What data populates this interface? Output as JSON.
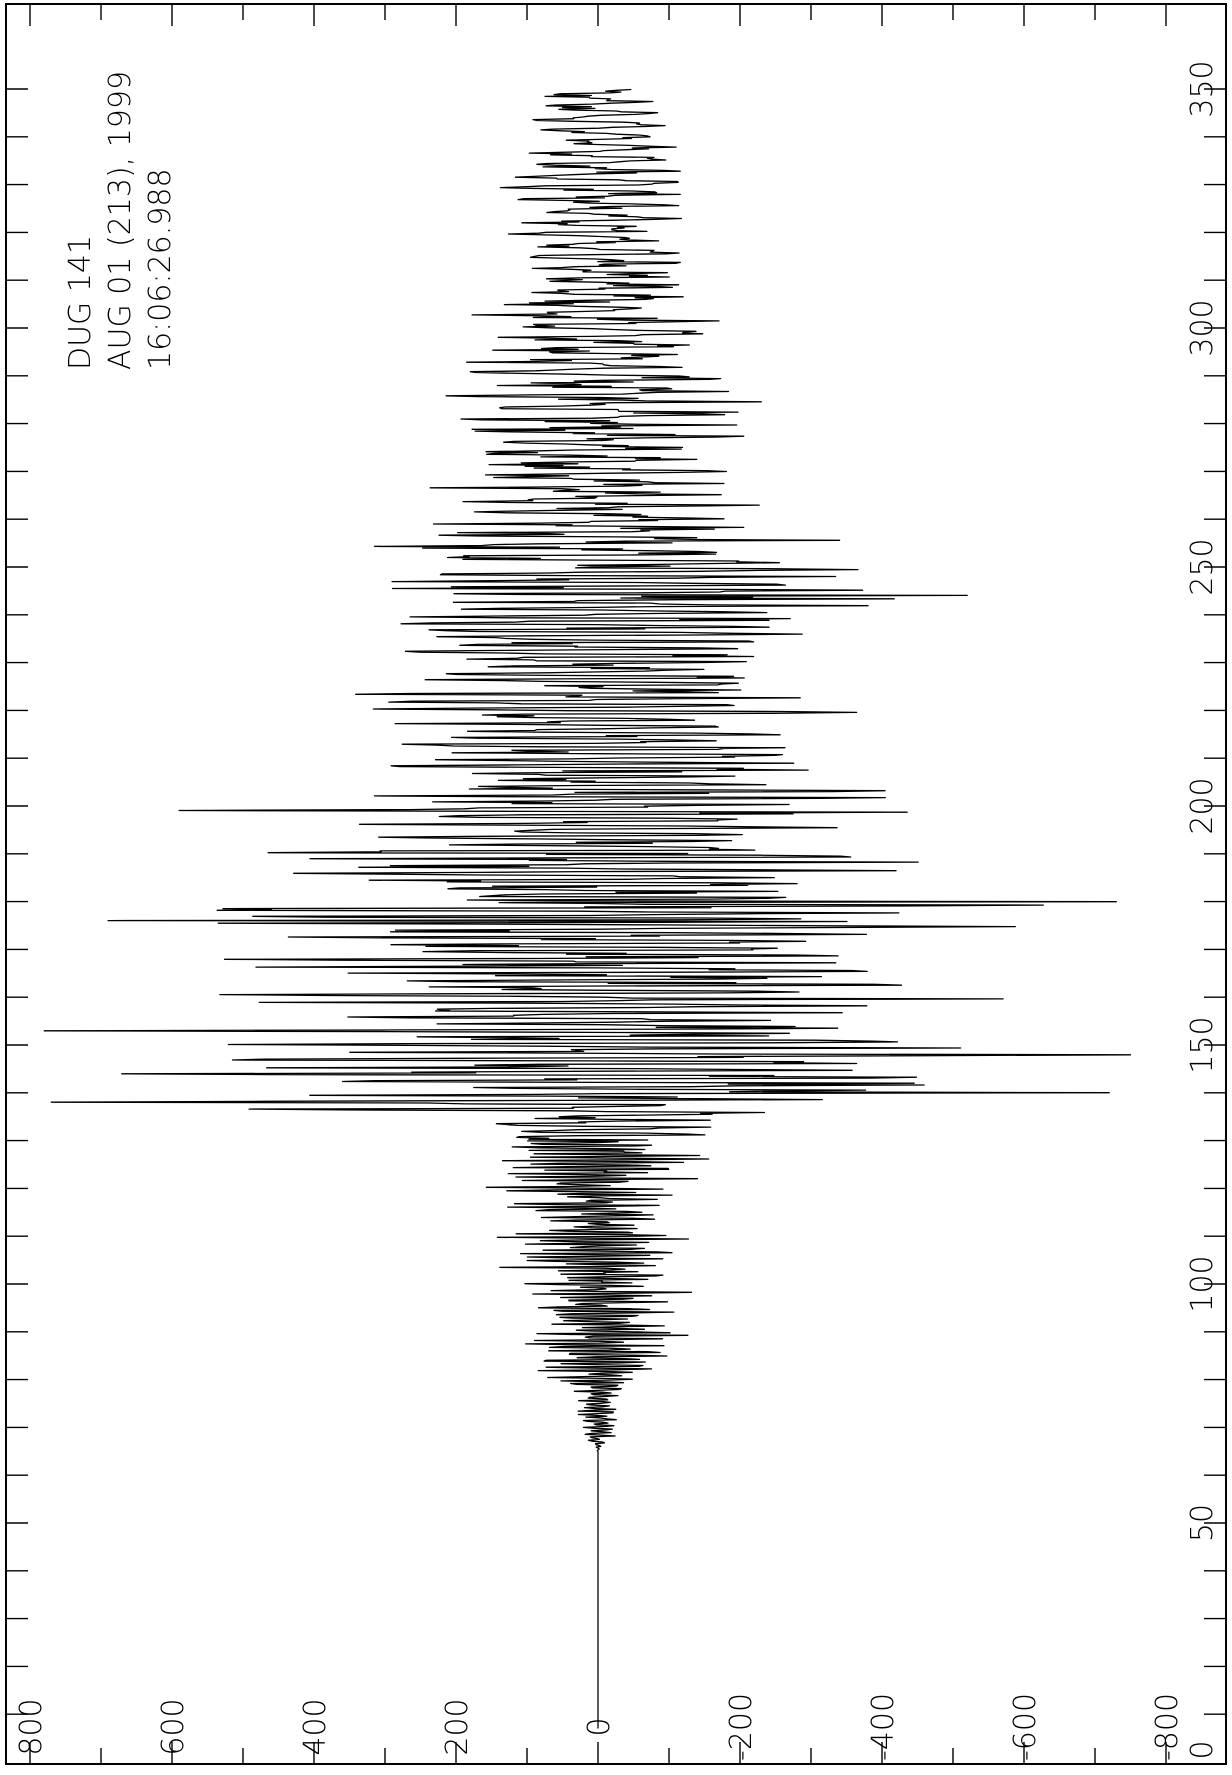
{
  "chart_data": {
    "type": "line",
    "orientation": "rotated-90",
    "title": "",
    "xlabel": "",
    "ylabel": "",
    "annotation": [
      "DUG  141",
      "AUG 01 (213), 1999",
      "16:06:26.988"
    ],
    "xlim": [
      0,
      350
    ],
    "ylim": [
      -800,
      800
    ],
    "x_ticks": [
      {
        "value": 0,
        "label": "0"
      },
      {
        "value": 50,
        "label": "50"
      },
      {
        "value": 100,
        "label": "100"
      },
      {
        "value": 150,
        "label": "150"
      },
      {
        "value": 200,
        "label": "200"
      },
      {
        "value": 250,
        "label": "250"
      },
      {
        "value": 300,
        "label": "300"
      },
      {
        "value": 350,
        "label": "350"
      }
    ],
    "y_ticks": [
      {
        "value": 800,
        "label": "800"
      },
      {
        "value": 600,
        "label": "600"
      },
      {
        "value": 400,
        "label": "400"
      },
      {
        "value": 200,
        "label": "200"
      },
      {
        "value": 0,
        "label": "0"
      },
      {
        "value": -200,
        "label": "-200"
      },
      {
        "value": -400,
        "label": "-400"
      },
      {
        "value": -600,
        "label": "-600"
      },
      {
        "value": -800,
        "label": "-800"
      }
    ],
    "grid": false,
    "legend": "none",
    "line_color": "#000000",
    "envelope": [
      [
        7,
        0
      ],
      [
        65,
        0
      ],
      [
        68,
        30
      ],
      [
        72,
        40
      ],
      [
        76,
        45
      ],
      [
        80,
        75
      ],
      [
        85,
        140
      ],
      [
        90,
        160
      ],
      [
        95,
        150
      ],
      [
        100,
        155
      ],
      [
        105,
        165
      ],
      [
        110,
        150
      ],
      [
        115,
        160
      ],
      [
        120,
        190
      ],
      [
        125,
        170
      ],
      [
        130,
        190
      ],
      [
        135,
        400
      ],
      [
        138,
        700
      ],
      [
        142,
        720
      ],
      [
        146,
        700
      ],
      [
        150,
        760
      ],
      [
        155,
        420
      ],
      [
        160,
        680
      ],
      [
        165,
        640
      ],
      [
        170,
        560
      ],
      [
        175,
        720
      ],
      [
        180,
        730
      ],
      [
        185,
        560
      ],
      [
        190,
        560
      ],
      [
        195,
        540
      ],
      [
        200,
        600
      ],
      [
        205,
        480
      ],
      [
        210,
        420
      ],
      [
        215,
        380
      ],
      [
        220,
        430
      ],
      [
        225,
        420
      ],
      [
        230,
        400
      ],
      [
        235,
        380
      ],
      [
        240,
        390
      ],
      [
        245,
        520
      ],
      [
        250,
        440
      ],
      [
        255,
        420
      ],
      [
        260,
        300
      ],
      [
        265,
        270
      ],
      [
        270,
        250
      ],
      [
        275,
        240
      ],
      [
        280,
        260
      ],
      [
        285,
        280
      ],
      [
        290,
        240
      ],
      [
        295,
        220
      ],
      [
        300,
        200
      ],
      [
        305,
        210
      ],
      [
        310,
        180
      ],
      [
        315,
        180
      ],
      [
        320,
        170
      ],
      [
        325,
        170
      ],
      [
        330,
        160
      ],
      [
        335,
        140
      ],
      [
        340,
        130
      ],
      [
        345,
        120
      ],
      [
        350,
        110
      ]
    ],
    "peaks": [
      {
        "x": 138,
        "y": 770
      },
      {
        "x": 140,
        "y": -720
      },
      {
        "x": 148,
        "y": -750
      },
      {
        "x": 153,
        "y": 780
      },
      {
        "x": 176,
        "y": 690
      },
      {
        "x": 180,
        "y": -730
      },
      {
        "x": 199,
        "y": 590
      },
      {
        "x": 244,
        "y": -520
      },
      {
        "x": 247,
        "y": 290
      }
    ]
  }
}
